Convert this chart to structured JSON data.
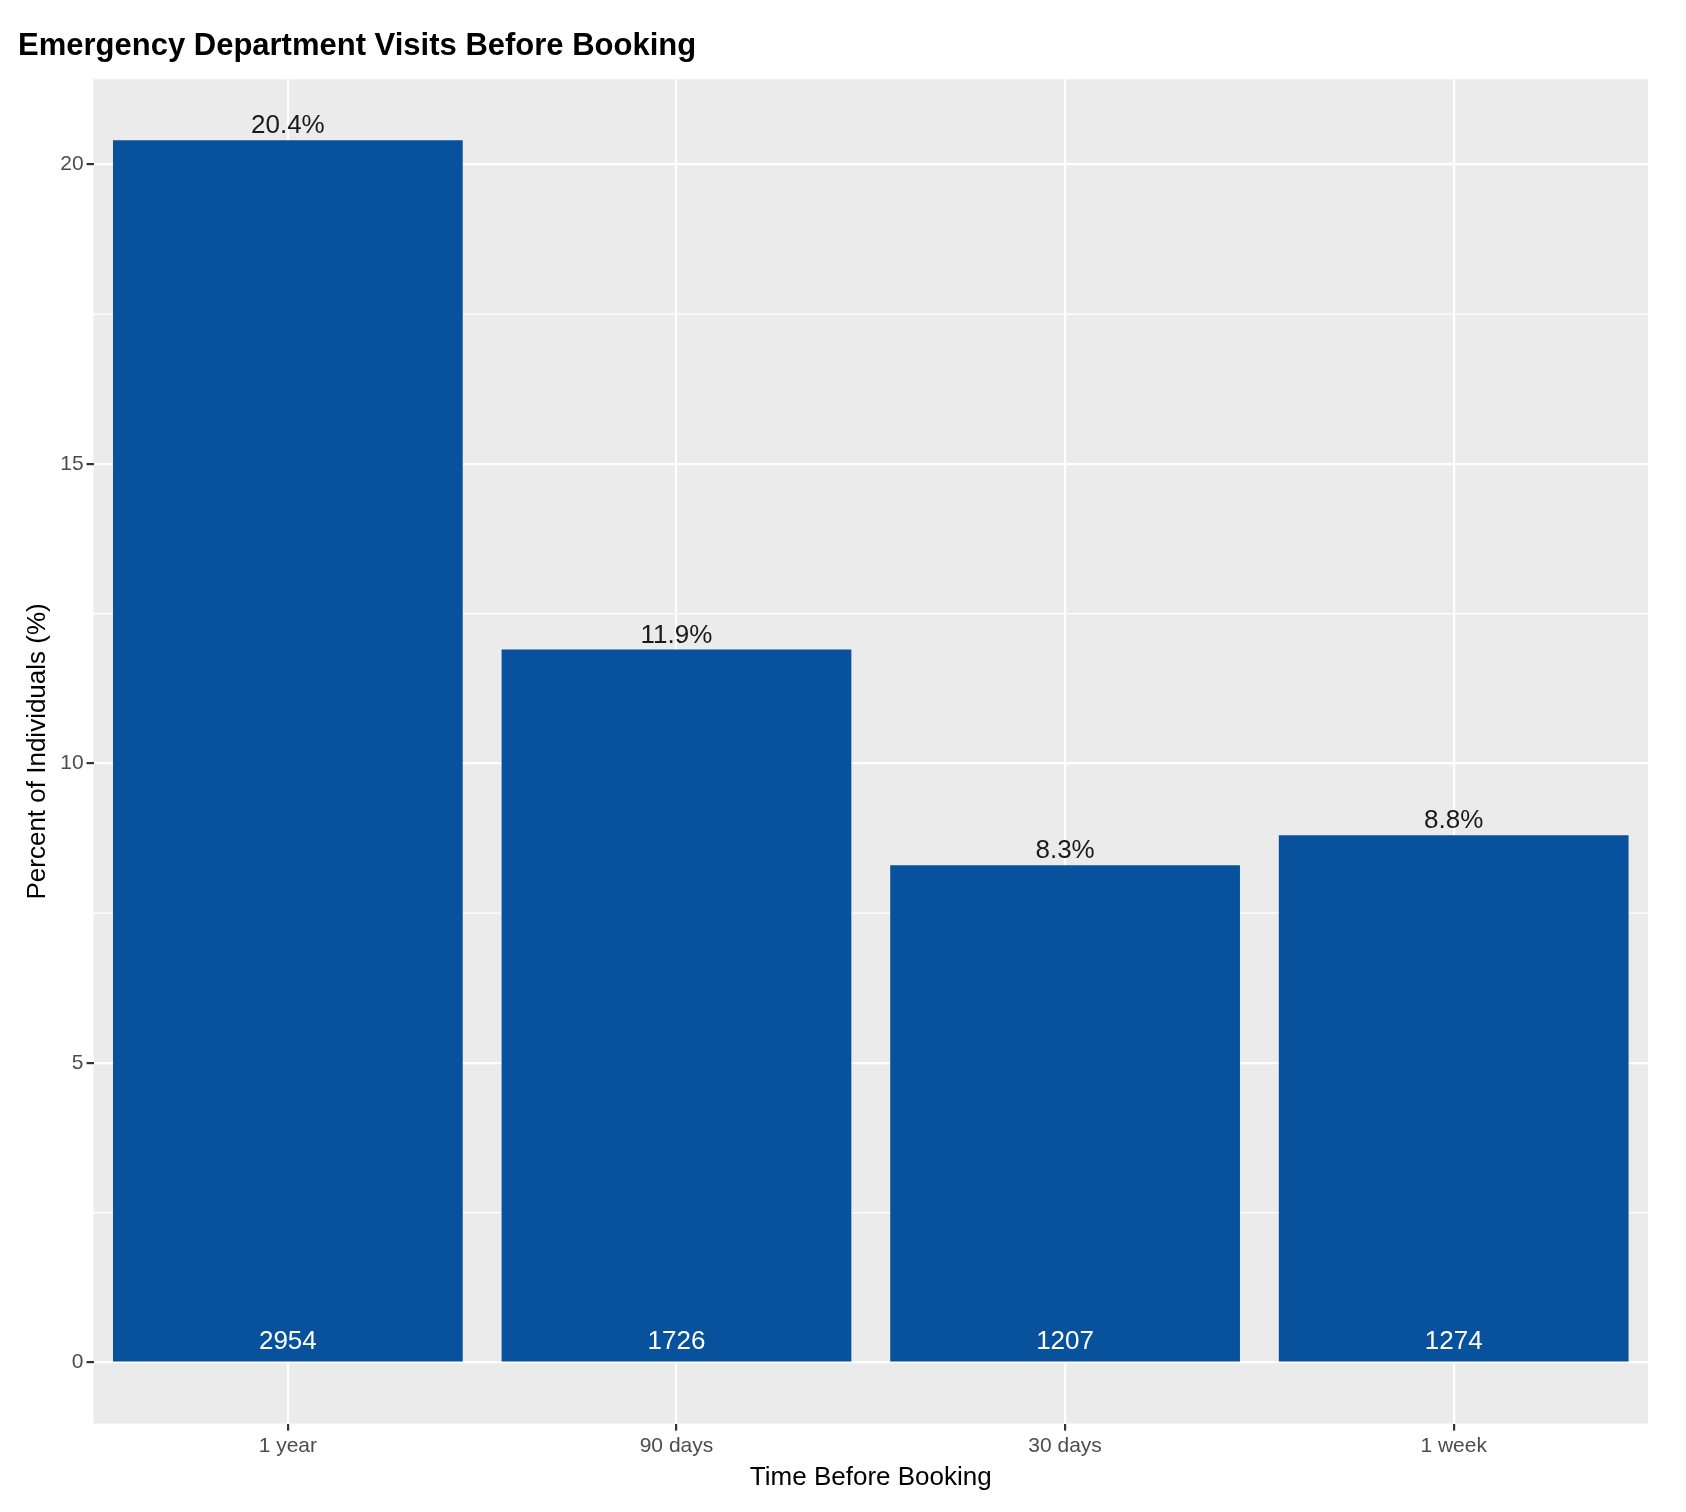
{
  "chart_data": {
    "type": "bar",
    "title": "Emergency Department Visits Before Booking",
    "xlabel": "Time Before Booking",
    "ylabel": "Percent of Individuals (%)",
    "categories": [
      "1 year",
      "90 days",
      "30 days",
      "1 week"
    ],
    "values": [
      20.4,
      11.9,
      8.3,
      8.8
    ],
    "value_labels": [
      "20.4%",
      "11.9%",
      "8.3%",
      "8.8%"
    ],
    "color": "#08519c",
    "annotations": [
      {
        "text": "2954",
        "x": "1 year",
        "y": 0
      },
      {
        "text": "1726",
        "x": "90 days",
        "y": 0
      },
      {
        "text": "1207",
        "x": "30 days",
        "y": 0
      },
      {
        "text": "1274",
        "x": "1 week",
        "y": 0
      }
    ],
    "ylim": [
      -1.02,
      21.42
    ],
    "yticks": [
      0,
      5,
      10,
      15,
      20
    ],
    "grid": true,
    "legend": false
  }
}
